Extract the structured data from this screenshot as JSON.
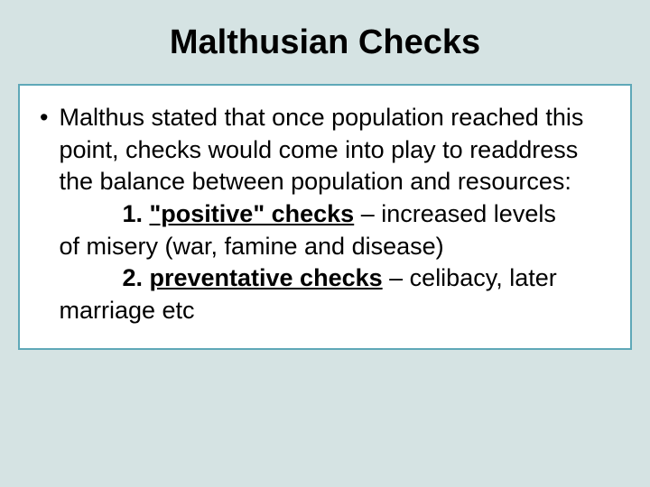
{
  "slide": {
    "title": "Malthusian Checks",
    "background_color": "#d5e3e3",
    "box_border_color": "#5fa8b8",
    "box_background": "#ffffff",
    "title_fontsize": 38,
    "body_fontsize": 27,
    "text_color": "#000000",
    "bullet_char": "•",
    "intro": "Malthus stated that once population reached this point, checks would come into play to readdress the balance between population and resources:",
    "item1_num": "1. ",
    "item1_label": "\"positive\" checks",
    "item1_sep": " – ",
    "item1_rest_a": "increased levels",
    "item1_rest_b": "of  misery (war, famine and disease)",
    "item2_num": "2. ",
    "item2_label": "preventative checks",
    "item2_sep": " – ",
    "item2_rest": "celibacy, later marriage etc"
  }
}
